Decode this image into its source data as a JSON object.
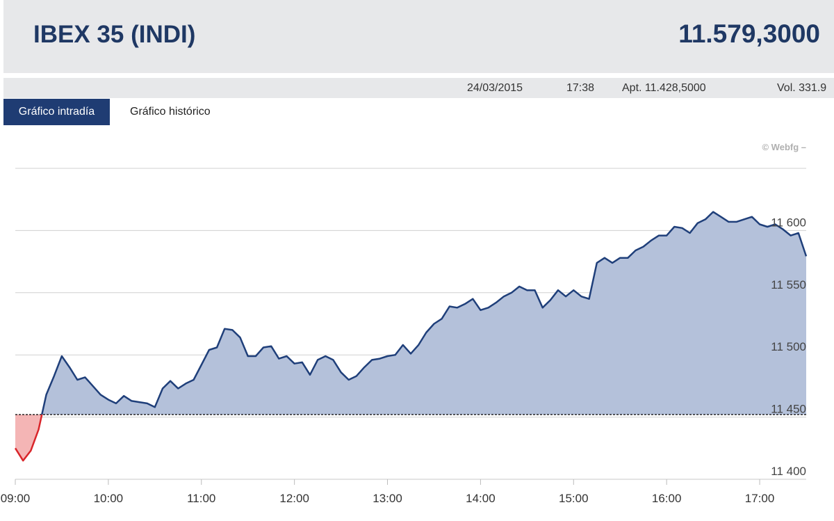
{
  "header": {
    "title": "IBEX 35 (INDI)",
    "value": "11.579,3000"
  },
  "info": {
    "date": "24/03/2015",
    "time": "17:38",
    "open": "Apt. 11.428,5000",
    "volume": "Vol. 331.9"
  },
  "tabs": [
    "Gráfico intradía",
    "Gráfico histórico"
  ],
  "credit": "© Webfg –",
  "chart_data": {
    "type": "line",
    "x": [
      "09:00",
      "09:05",
      "09:10",
      "09:15",
      "09:20",
      "09:25",
      "09:30",
      "09:35",
      "09:40",
      "09:45",
      "09:50",
      "09:55",
      "10:00",
      "10:05",
      "10:10",
      "10:15",
      "10:20",
      "10:25",
      "10:30",
      "10:35",
      "10:40",
      "10:45",
      "10:50",
      "10:55",
      "11:00",
      "11:05",
      "11:10",
      "11:15",
      "11:20",
      "11:25",
      "11:30",
      "11:35",
      "11:40",
      "11:45",
      "11:50",
      "11:55",
      "12:00",
      "12:05",
      "12:10",
      "12:15",
      "12:20",
      "12:25",
      "12:30",
      "12:35",
      "12:40",
      "12:45",
      "12:50",
      "12:55",
      "13:00",
      "13:05",
      "13:10",
      "13:15",
      "13:20",
      "13:25",
      "13:30",
      "13:35",
      "13:40",
      "13:45",
      "13:50",
      "13:55",
      "14:00",
      "14:05",
      "14:10",
      "14:15",
      "14:20",
      "14:25",
      "14:30",
      "14:35",
      "14:40",
      "14:45",
      "14:50",
      "14:55",
      "15:00",
      "15:05",
      "15:10",
      "15:15",
      "15:20",
      "15:25",
      "15:30",
      "15:35",
      "15:40",
      "15:45",
      "15:50",
      "15:55",
      "16:00",
      "16:05",
      "16:10",
      "16:15",
      "16:20",
      "16:25",
      "16:30",
      "16:35",
      "16:40",
      "16:45",
      "16:50",
      "16:55",
      "17:00",
      "17:05",
      "17:10",
      "17:15",
      "17:20",
      "17:25",
      "17:30"
    ],
    "values": [
      11425,
      11415,
      11423,
      11440,
      11468,
      11483,
      11499,
      11490,
      11480,
      11482,
      11475,
      11468,
      11464,
      11461,
      11467,
      11463,
      11462,
      11461,
      11458,
      11473,
      11479,
      11473,
      11477,
      11480,
      11492,
      11504,
      11506,
      11521,
      11520,
      11514,
      11499,
      11499,
      11506,
      11507,
      11497,
      11499,
      11493,
      11494,
      11484,
      11496,
      11499,
      11496,
      11486,
      11480,
      11483,
      11490,
      11496,
      11497,
      11499,
      11500,
      11508,
      11501,
      11508,
      11518,
      11525,
      11529,
      11539,
      11538,
      11541,
      11545,
      11536,
      11538,
      11542,
      11547,
      11550,
      11555,
      11552,
      11552,
      11538,
      11544,
      11552,
      11547,
      11552,
      11547,
      11545,
      11574,
      11578,
      11574,
      11578,
      11578,
      11584,
      11587,
      11592,
      11596,
      11596,
      11603,
      11602,
      11598,
      11606,
      11609,
      11615,
      11611,
      11607,
      11607,
      11609,
      11611,
      11605,
      11603,
      11605,
      11601,
      11596,
      11598,
      11579.3
    ],
    "color": "#1f3f7a",
    "fill": "#b4c1da",
    "down_color": "#d9252a",
    "down_fill": "#f4b5b5",
    "baseline": 11452,
    "xlim": [
      "09:00",
      "17:30"
    ],
    "xticks": [
      "09:00",
      "10:00",
      "11:00",
      "12:00",
      "13:00",
      "14:00",
      "15:00",
      "16:00",
      "17:00"
    ],
    "ylim": [
      11400,
      11650
    ],
    "yticks": [
      {
        "value": 11400,
        "label": "11 400"
      },
      {
        "value": 11450,
        "label": "11 450"
      },
      {
        "value": 11500,
        "label": "11 500"
      },
      {
        "value": 11550,
        "label": "11 550"
      },
      {
        "value": 11600,
        "label": "11 600"
      }
    ],
    "grid": true
  }
}
